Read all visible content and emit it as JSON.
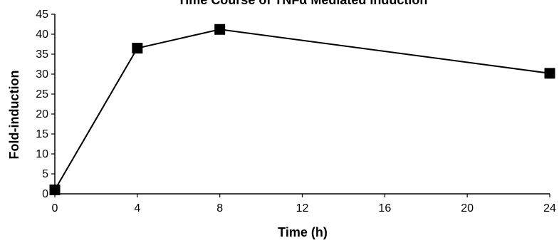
{
  "chart_data": {
    "type": "line",
    "title": "Time Course of TNFα Mediated Induction",
    "xlabel": "Time (h)",
    "ylabel": "Fold-induction",
    "xlim": [
      0,
      24
    ],
    "ylim": [
      0,
      45
    ],
    "xticks": [
      0,
      4,
      8,
      12,
      16,
      20,
      24
    ],
    "yticks": [
      0,
      5,
      10,
      15,
      20,
      25,
      30,
      35,
      40,
      45
    ],
    "grid": false,
    "legend": "none",
    "series": [
      {
        "x": [
          0,
          4,
          8,
          24
        ],
        "y": [
          1,
          36.5,
          41.2,
          30.2
        ],
        "marker": "square",
        "color": "#000000"
      }
    ]
  }
}
